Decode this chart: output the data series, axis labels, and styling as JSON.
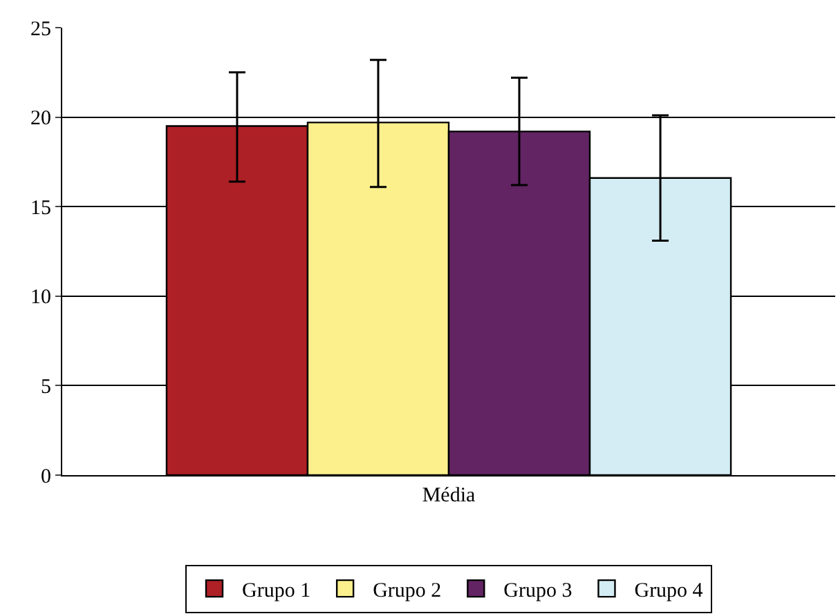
{
  "chart_data": {
    "type": "bar",
    "categories": [
      "Média"
    ],
    "series": [
      {
        "name": "Grupo 1",
        "color": "#ad2025",
        "values": [
          19.5
        ],
        "errors": [
          [
            16.4,
            22.5
          ]
        ]
      },
      {
        "name": "Grupo 2",
        "color": "#fcf08c",
        "values": [
          19.7
        ],
        "errors": [
          [
            16.1,
            23.2
          ]
        ]
      },
      {
        "name": "Grupo 3",
        "color": "#622463",
        "values": [
          19.2
        ],
        "errors": [
          [
            16.2,
            22.2
          ]
        ]
      },
      {
        "name": "Grupo 4",
        "color": "#d4ecf3",
        "values": [
          16.6
        ],
        "errors": [
          [
            13.1,
            20.1
          ]
        ]
      }
    ],
    "ylim": [
      0,
      25
    ],
    "yticks": [
      0,
      5,
      10,
      15,
      20,
      25
    ],
    "grid": "y",
    "legend": "bottom"
  }
}
